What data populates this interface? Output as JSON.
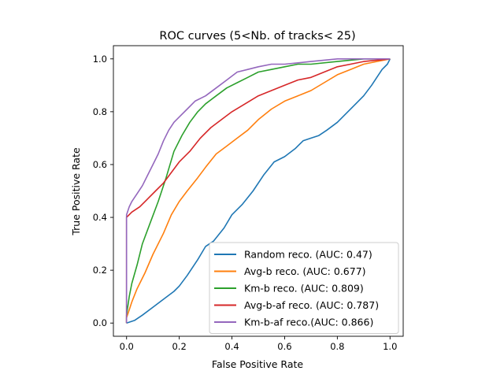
{
  "chart_data": {
    "type": "line",
    "title": "ROC curves (5<Nb. of tracks< 25)",
    "xlabel": "False Positive Rate",
    "ylabel": "True Positive Rate",
    "xlim": [
      -0.05,
      1.05
    ],
    "ylim": [
      -0.05,
      1.05
    ],
    "xticks": [
      0.0,
      0.2,
      0.4,
      0.6,
      0.8,
      1.0
    ],
    "yticks": [
      0.0,
      0.2,
      0.4,
      0.6,
      0.8,
      1.0
    ],
    "xtick_labels": [
      "0.0",
      "0.2",
      "0.4",
      "0.6",
      "0.8",
      "1.0"
    ],
    "ytick_labels": [
      "0.0",
      "0.2",
      "0.4",
      "0.6",
      "0.8",
      "1.0"
    ],
    "grid": false,
    "legend_position": "lower-right",
    "series": [
      {
        "name": "Random reco. (AUC: 0.47)",
        "color": "#1f77b4",
        "points": [
          [
            0.0,
            0.0
          ],
          [
            0.03,
            0.01
          ],
          [
            0.06,
            0.03
          ],
          [
            0.1,
            0.06
          ],
          [
            0.14,
            0.09
          ],
          [
            0.18,
            0.12
          ],
          [
            0.2,
            0.14
          ],
          [
            0.23,
            0.18
          ],
          [
            0.27,
            0.24
          ],
          [
            0.3,
            0.29
          ],
          [
            0.33,
            0.31
          ],
          [
            0.37,
            0.36
          ],
          [
            0.4,
            0.41
          ],
          [
            0.44,
            0.45
          ],
          [
            0.48,
            0.5
          ],
          [
            0.52,
            0.56
          ],
          [
            0.56,
            0.61
          ],
          [
            0.6,
            0.63
          ],
          [
            0.64,
            0.66
          ],
          [
            0.67,
            0.69
          ],
          [
            0.7,
            0.7
          ],
          [
            0.73,
            0.71
          ],
          [
            0.76,
            0.73
          ],
          [
            0.8,
            0.76
          ],
          [
            0.84,
            0.8
          ],
          [
            0.87,
            0.83
          ],
          [
            0.9,
            0.86
          ],
          [
            0.93,
            0.9
          ],
          [
            0.95,
            0.93
          ],
          [
            0.97,
            0.96
          ],
          [
            0.99,
            0.98
          ],
          [
            1.0,
            1.0
          ]
        ]
      },
      {
        "name": "Avg-b reco. (AUC: 0.677)",
        "color": "#ff7f0e",
        "points": [
          [
            0.0,
            0.0
          ],
          [
            0.0,
            0.02
          ],
          [
            0.01,
            0.05
          ],
          [
            0.02,
            0.08
          ],
          [
            0.04,
            0.13
          ],
          [
            0.07,
            0.19
          ],
          [
            0.1,
            0.26
          ],
          [
            0.14,
            0.34
          ],
          [
            0.17,
            0.41
          ],
          [
            0.2,
            0.46
          ],
          [
            0.23,
            0.5
          ],
          [
            0.27,
            0.55
          ],
          [
            0.3,
            0.59
          ],
          [
            0.34,
            0.64
          ],
          [
            0.38,
            0.67
          ],
          [
            0.42,
            0.7
          ],
          [
            0.46,
            0.73
          ],
          [
            0.5,
            0.77
          ],
          [
            0.55,
            0.81
          ],
          [
            0.6,
            0.84
          ],
          [
            0.65,
            0.86
          ],
          [
            0.7,
            0.88
          ],
          [
            0.75,
            0.91
          ],
          [
            0.8,
            0.94
          ],
          [
            0.85,
            0.96
          ],
          [
            0.9,
            0.98
          ],
          [
            0.95,
            0.99
          ],
          [
            1.0,
            1.0
          ]
        ]
      },
      {
        "name": "Km-b reco. (AUC: 0.809)",
        "color": "#2ca02c",
        "points": [
          [
            0.0,
            0.0
          ],
          [
            0.0,
            0.03
          ],
          [
            0.01,
            0.1
          ],
          [
            0.02,
            0.15
          ],
          [
            0.04,
            0.22
          ],
          [
            0.06,
            0.3
          ],
          [
            0.09,
            0.38
          ],
          [
            0.12,
            0.46
          ],
          [
            0.15,
            0.55
          ],
          [
            0.18,
            0.65
          ],
          [
            0.21,
            0.71
          ],
          [
            0.24,
            0.76
          ],
          [
            0.27,
            0.8
          ],
          [
            0.3,
            0.83
          ],
          [
            0.34,
            0.86
          ],
          [
            0.38,
            0.89
          ],
          [
            0.42,
            0.91
          ],
          [
            0.46,
            0.93
          ],
          [
            0.5,
            0.95
          ],
          [
            0.55,
            0.96
          ],
          [
            0.6,
            0.97
          ],
          [
            0.65,
            0.98
          ],
          [
            0.7,
            0.98
          ],
          [
            0.8,
            0.99
          ],
          [
            0.9,
            1.0
          ],
          [
            1.0,
            1.0
          ]
        ]
      },
      {
        "name": "Avg-b-af reco. (AUC: 0.787)",
        "color": "#d62728",
        "points": [
          [
            0.0,
            0.0
          ],
          [
            0.0,
            0.4
          ],
          [
            0.02,
            0.42
          ],
          [
            0.05,
            0.44
          ],
          [
            0.08,
            0.47
          ],
          [
            0.11,
            0.5
          ],
          [
            0.14,
            0.53
          ],
          [
            0.17,
            0.57
          ],
          [
            0.2,
            0.61
          ],
          [
            0.24,
            0.65
          ],
          [
            0.28,
            0.7
          ],
          [
            0.32,
            0.74
          ],
          [
            0.36,
            0.77
          ],
          [
            0.4,
            0.8
          ],
          [
            0.45,
            0.83
          ],
          [
            0.5,
            0.86
          ],
          [
            0.55,
            0.88
          ],
          [
            0.6,
            0.9
          ],
          [
            0.65,
            0.92
          ],
          [
            0.7,
            0.93
          ],
          [
            0.75,
            0.95
          ],
          [
            0.8,
            0.97
          ],
          [
            0.85,
            0.98
          ],
          [
            0.9,
            0.99
          ],
          [
            1.0,
            1.0
          ]
        ]
      },
      {
        "name": "Km-b-af reco.(AUC: 0.866)",
        "color": "#9467bd",
        "points": [
          [
            0.0,
            0.0
          ],
          [
            0.0,
            0.41
          ],
          [
            0.01,
            0.44
          ],
          [
            0.02,
            0.46
          ],
          [
            0.04,
            0.49
          ],
          [
            0.06,
            0.52
          ],
          [
            0.08,
            0.56
          ],
          [
            0.1,
            0.6
          ],
          [
            0.12,
            0.64
          ],
          [
            0.14,
            0.69
          ],
          [
            0.16,
            0.73
          ],
          [
            0.18,
            0.76
          ],
          [
            0.2,
            0.78
          ],
          [
            0.23,
            0.81
          ],
          [
            0.26,
            0.84
          ],
          [
            0.3,
            0.86
          ],
          [
            0.34,
            0.89
          ],
          [
            0.38,
            0.92
          ],
          [
            0.42,
            0.95
          ],
          [
            0.46,
            0.96
          ],
          [
            0.5,
            0.97
          ],
          [
            0.55,
            0.98
          ],
          [
            0.6,
            0.98
          ],
          [
            0.7,
            0.99
          ],
          [
            0.8,
            1.0
          ],
          [
            1.0,
            1.0
          ]
        ]
      }
    ]
  }
}
